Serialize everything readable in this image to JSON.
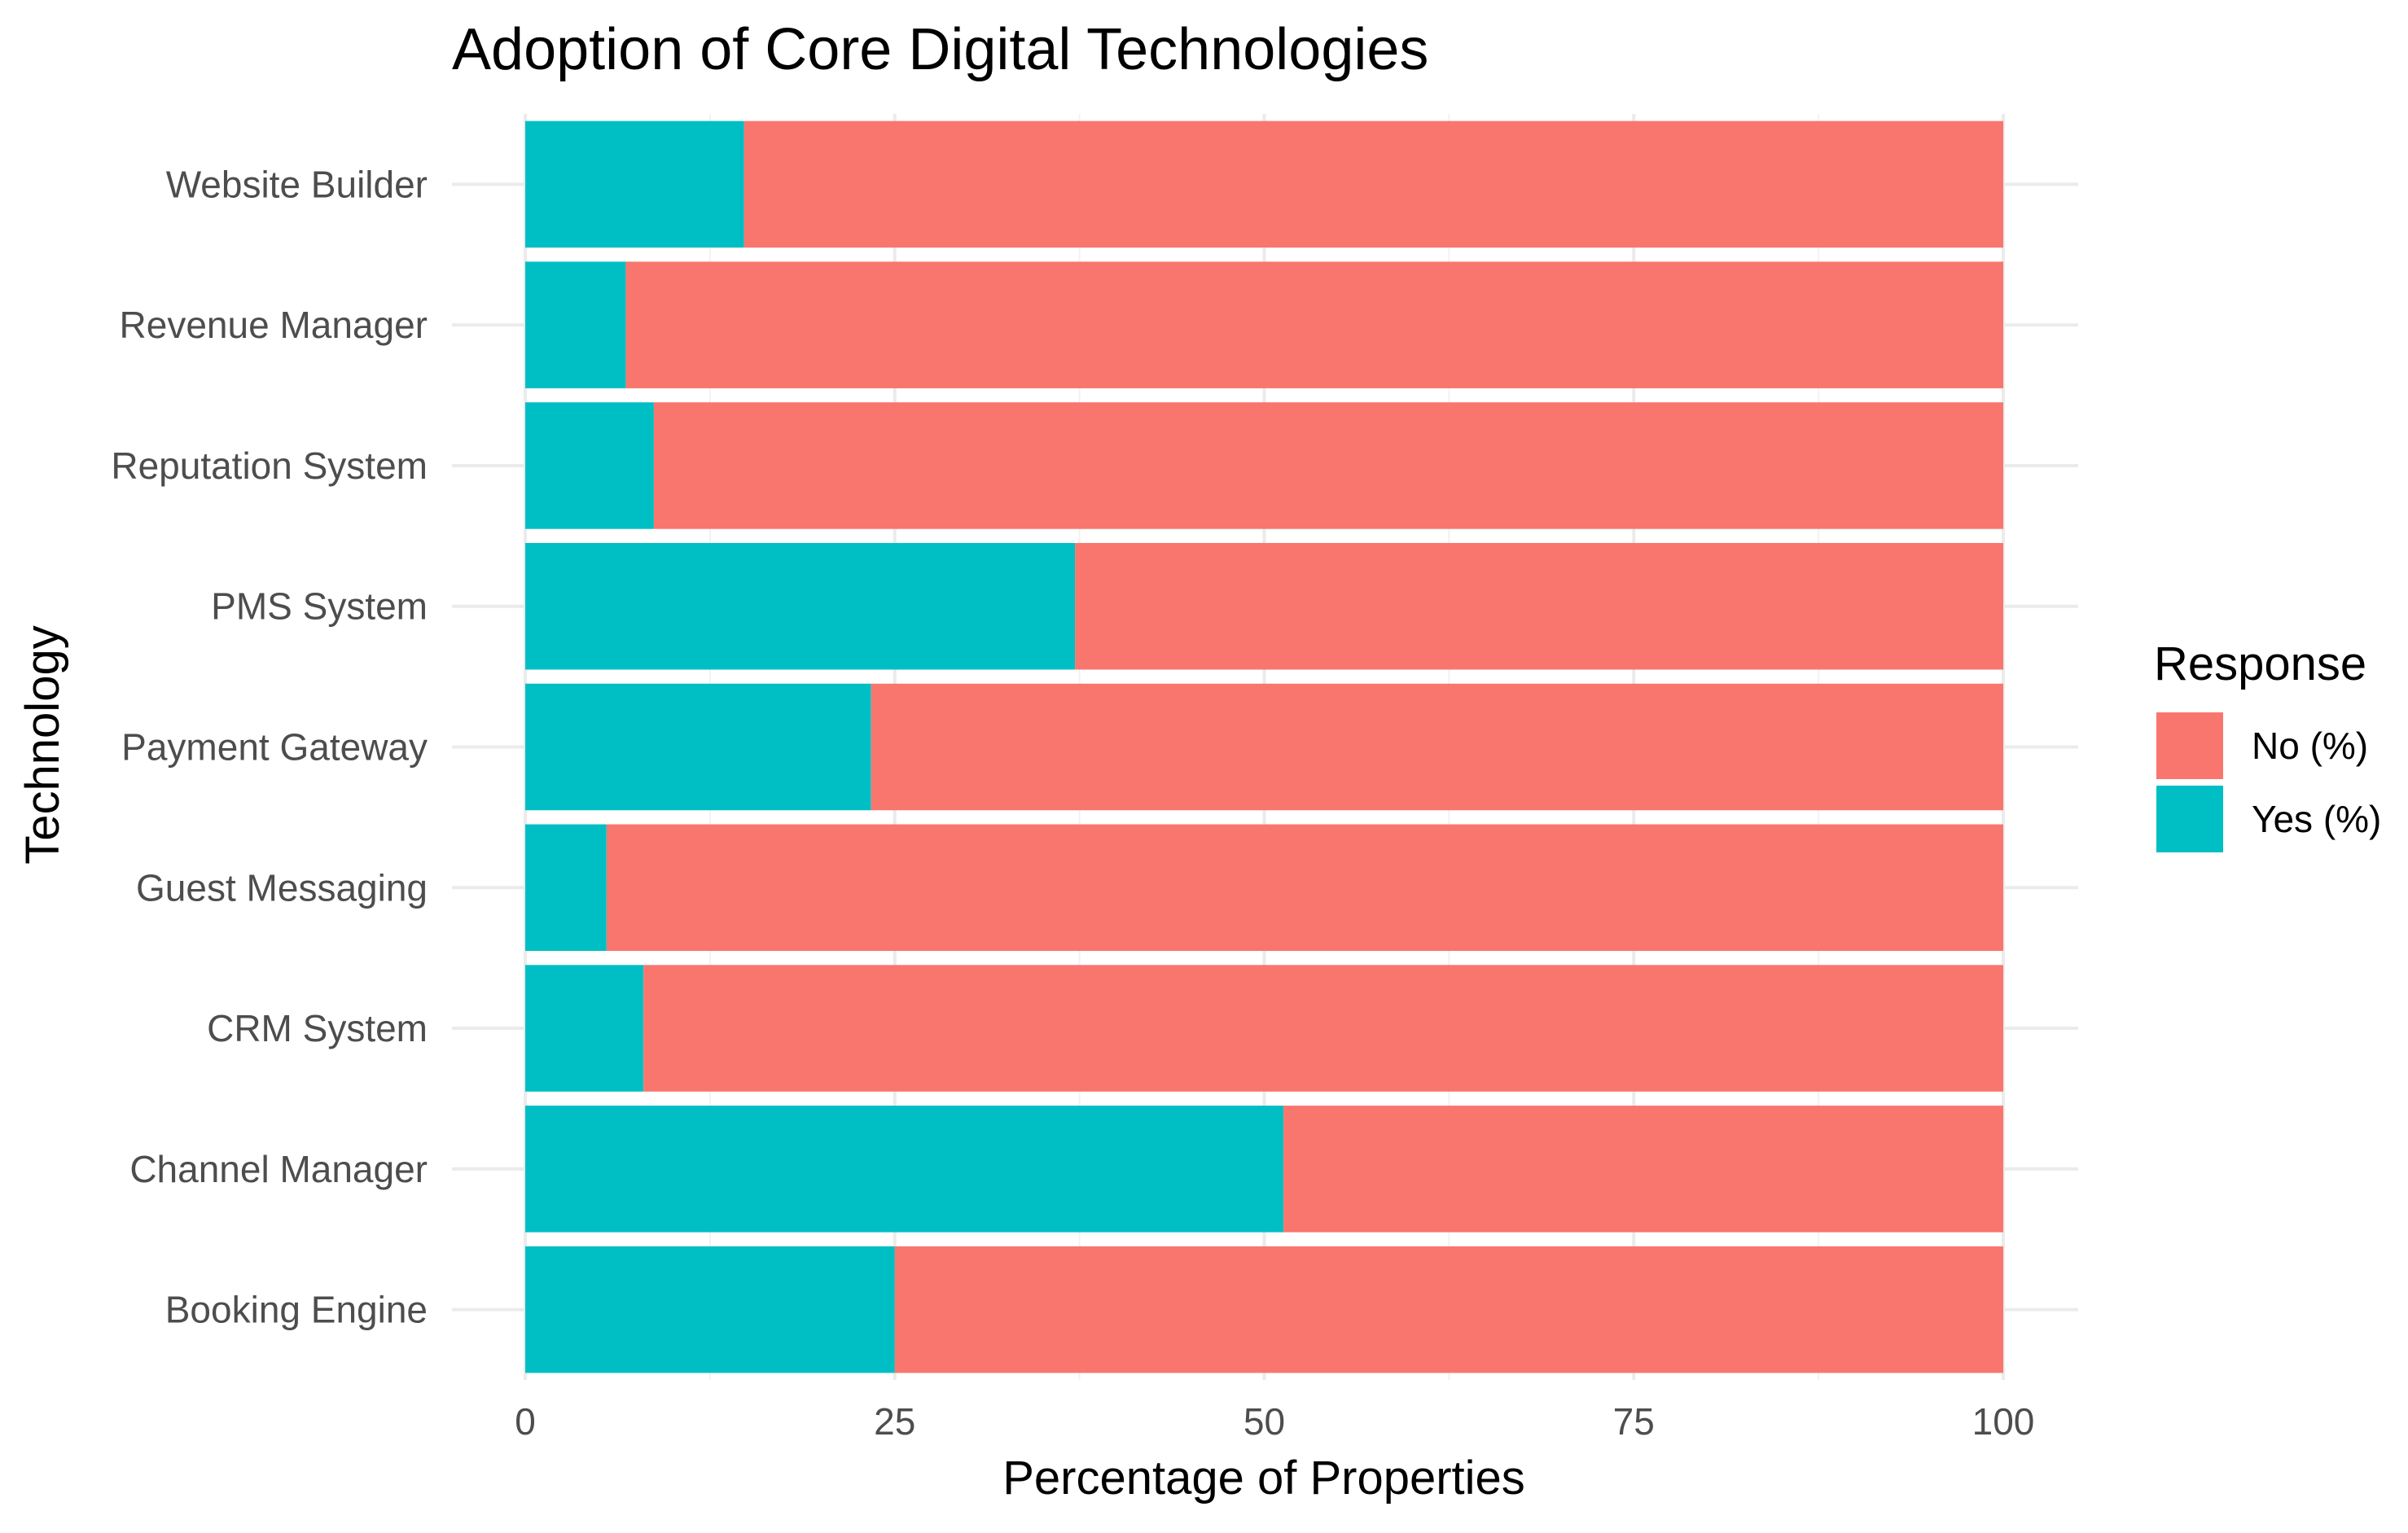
{
  "chart_data": {
    "type": "bar",
    "orientation": "horizontal",
    "stacked": true,
    "title": "Adoption of Core Digital Technologies",
    "xlabel": "Percentage of Properties",
    "ylabel": "Technology",
    "xlim": [
      0,
      100
    ],
    "xticks": [
      0,
      25,
      50,
      75,
      100
    ],
    "grid": true,
    "legend": {
      "title": "Response",
      "position": "right"
    },
    "categories": [
      "Booking Engine",
      "Channel Manager",
      "CRM System",
      "Guest Messaging",
      "Payment Gateway",
      "PMS System",
      "Reputation System",
      "Revenue Manager",
      "Website Builder"
    ],
    "series": [
      {
        "name": "Yes (%)",
        "color": "#00BFC4",
        "values": [
          25.0,
          51.3,
          8.0,
          5.5,
          23.4,
          37.2,
          8.7,
          6.8,
          14.8
        ]
      },
      {
        "name": "No (%)",
        "color": "#F8766D",
        "values": [
          75.0,
          48.7,
          92.0,
          94.5,
          76.6,
          62.8,
          91.3,
          93.2,
          85.2
        ]
      }
    ],
    "legend_order": [
      "No (%)",
      "Yes (%)"
    ]
  }
}
